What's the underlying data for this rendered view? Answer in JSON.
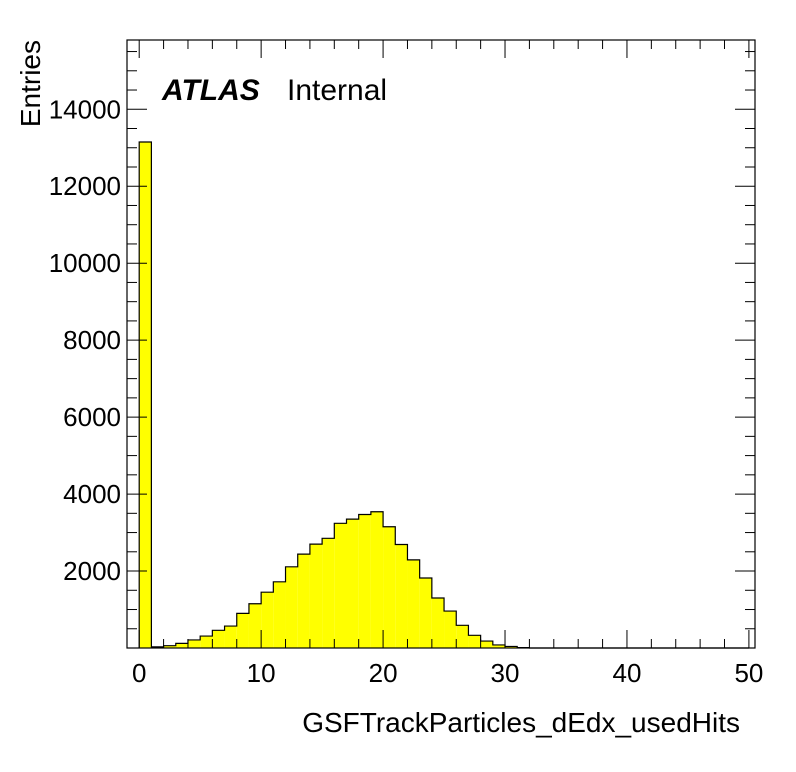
{
  "chart_data": {
    "type": "bar",
    "style": "histogram",
    "fill_color": "#ffff00",
    "line_color": "#000000",
    "xlabel": "GSFTrackParticles_dEdx_usedHits",
    "ylabel": "Entries",
    "label_bold": "ATLAS",
    "label_text": "Internal",
    "xlim": [
      -1,
      50.5
    ],
    "ylim": [
      0,
      15800
    ],
    "bin_width": 1,
    "bin_starts": [
      0,
      1,
      2,
      3,
      4,
      5,
      6,
      7,
      8,
      9,
      10,
      11,
      12,
      13,
      14,
      15,
      16,
      17,
      18,
      19,
      20,
      21,
      22,
      23,
      24,
      25,
      26,
      27,
      28,
      29,
      30,
      31,
      32,
      33,
      34,
      35,
      36,
      37,
      38,
      39,
      40,
      41,
      42,
      43,
      44,
      45,
      46,
      47,
      48,
      49
    ],
    "values": [
      13150,
      30,
      60,
      120,
      210,
      310,
      460,
      570,
      900,
      1150,
      1450,
      1720,
      2110,
      2440,
      2700,
      2850,
      3240,
      3350,
      3470,
      3540,
      3150,
      2690,
      2290,
      1820,
      1300,
      960,
      590,
      330,
      180,
      80,
      40,
      10,
      0,
      0,
      0,
      0,
      0,
      0,
      0,
      0,
      0,
      0,
      0,
      0,
      0,
      0,
      0,
      0,
      0,
      0
    ],
    "x_ticks": [
      0,
      10,
      20,
      30,
      40,
      50
    ],
    "x_tick_labels": [
      "0",
      "10",
      "20",
      "30",
      "40",
      "50"
    ],
    "y_ticks": [
      2000,
      4000,
      6000,
      8000,
      10000,
      12000,
      14000
    ],
    "y_tick_labels": [
      "2000",
      "4000",
      "6000",
      "8000",
      "10000",
      "12000",
      "14000"
    ],
    "grid": false,
    "legend": false
  }
}
